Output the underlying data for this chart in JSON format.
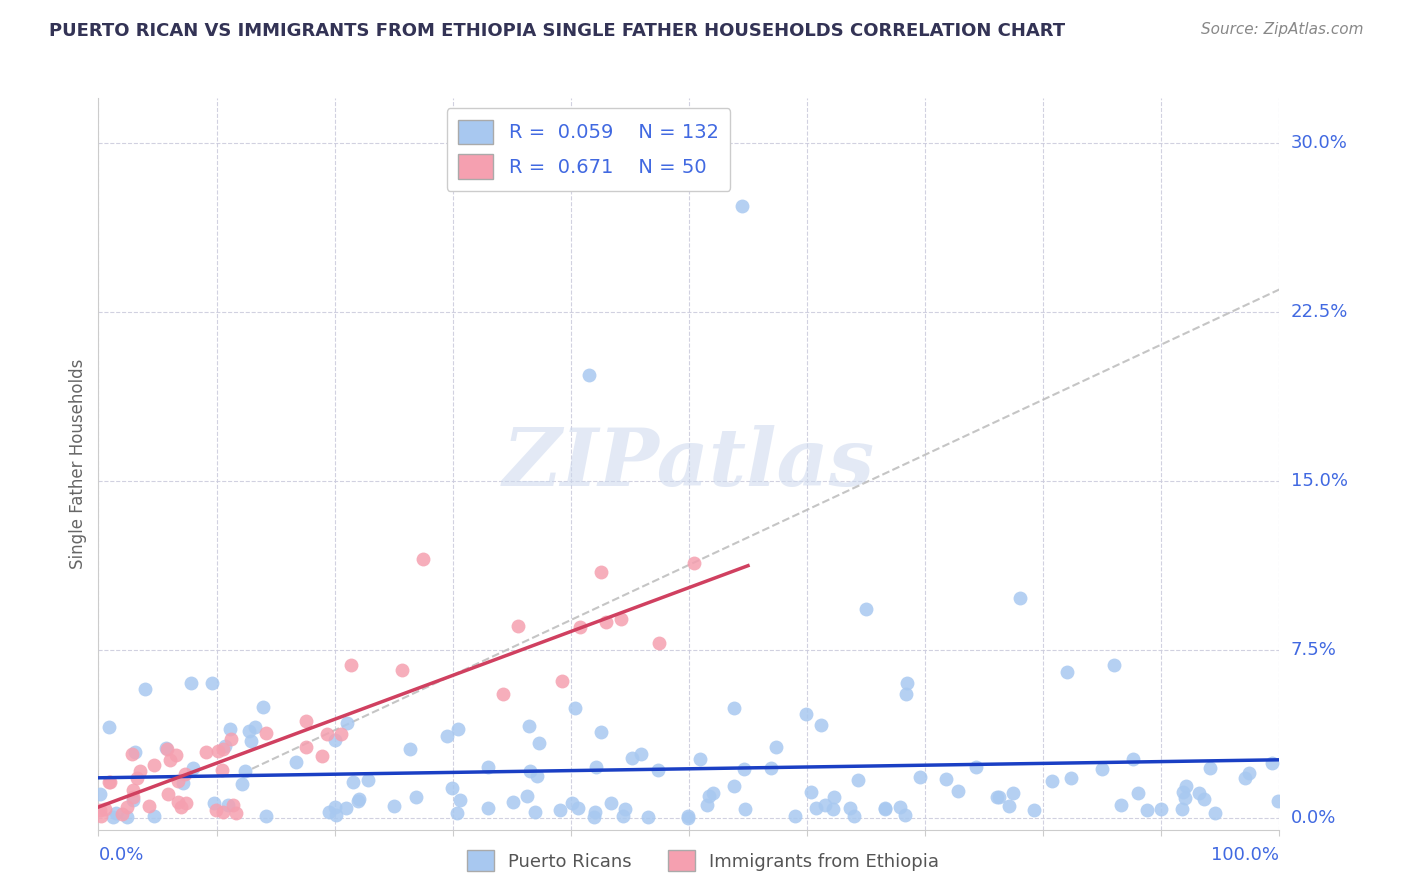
{
  "title": "PUERTO RICAN VS IMMIGRANTS FROM ETHIOPIA SINGLE FATHER HOUSEHOLDS CORRELATION CHART",
  "source": "Source: ZipAtlas.com",
  "ylabel": "Single Father Households",
  "r_blue": 0.059,
  "n_blue": 132,
  "r_pink": 0.671,
  "n_pink": 50,
  "blue_color": "#a8c8f0",
  "pink_color": "#f5a0b0",
  "blue_line_color": "#1a3fc4",
  "pink_line_color": "#d04060",
  "bg_color": "#ffffff",
  "grid_color": "#ccccdd",
  "ytick_labels": [
    "0.0%",
    "7.5%",
    "15.0%",
    "22.5%",
    "30.0%"
  ],
  "ytick_values": [
    0.0,
    0.075,
    0.15,
    0.225,
    0.3
  ],
  "xlim": [
    0.0,
    1.0
  ],
  "ylim": [
    -0.005,
    0.32
  ],
  "title_color": "#333355",
  "axis_label_color": "#4169E1"
}
